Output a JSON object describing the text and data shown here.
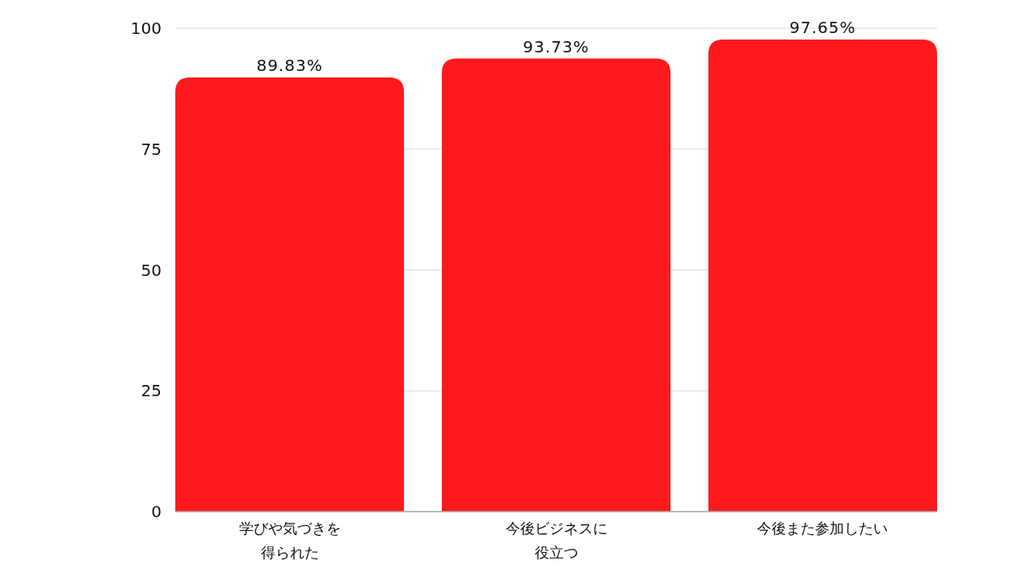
{
  "chart_data": {
    "type": "bar",
    "categories": [
      "学びや気づきを得られた",
      "今後ビジネスに役立つ",
      "今後また参加したい"
    ],
    "values": [
      89.83,
      93.73,
      97.65
    ],
    "color": "#fe1a1c",
    "value_labels": [
      "89.83%",
      "93.73%",
      "97.65%"
    ],
    "ylim": [
      0,
      100
    ],
    "yticks": [
      0,
      25,
      50,
      75,
      100
    ],
    "grid": "y"
  }
}
